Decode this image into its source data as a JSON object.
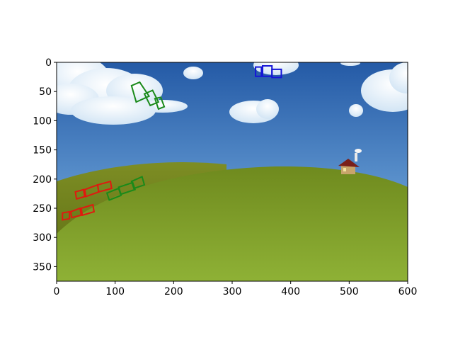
{
  "axes": {
    "x_ticks": [
      "0",
      "100",
      "200",
      "300",
      "400",
      "500",
      "600"
    ],
    "y_ticks": [
      "0",
      "50",
      "100",
      "150",
      "200",
      "250",
      "300",
      "350"
    ],
    "xlim": [
      0,
      600
    ],
    "ylim": [
      375,
      0
    ]
  },
  "scene": {
    "sky_color_top": "#2a5ea8",
    "sky_color_bottom": "#7fb6e6",
    "hill_color": "#7f9a26",
    "hill_dark": "#5f7a18"
  },
  "annotations": {
    "colors": {
      "red": "#e0190f",
      "green": "#1a8a1a",
      "blue": "#1515d8"
    },
    "boxes": [
      {
        "color": "red",
        "points": [
          [
            10,
            258
          ],
          [
            22,
            256
          ],
          [
            22,
            268
          ],
          [
            10,
            270
          ]
        ]
      },
      {
        "color": "red",
        "points": [
          [
            24,
            256
          ],
          [
            40,
            250
          ],
          [
            42,
            262
          ],
          [
            26,
            266
          ]
        ]
      },
      {
        "color": "red",
        "points": [
          [
            42,
            250
          ],
          [
            62,
            244
          ],
          [
            64,
            256
          ],
          [
            44,
            262
          ]
        ]
      },
      {
        "color": "red",
        "points": [
          [
            32,
            222
          ],
          [
            46,
            218
          ],
          [
            48,
            230
          ],
          [
            34,
            234
          ]
        ]
      },
      {
        "color": "red",
        "points": [
          [
            48,
            218
          ],
          [
            70,
            210
          ],
          [
            72,
            222
          ],
          [
            50,
            230
          ]
        ]
      },
      {
        "color": "red",
        "points": [
          [
            70,
            210
          ],
          [
            92,
            204
          ],
          [
            94,
            216
          ],
          [
            72,
            222
          ]
        ]
      },
      {
        "color": "green",
        "points": [
          [
            86,
            224
          ],
          [
            106,
            216
          ],
          [
            110,
            228
          ],
          [
            90,
            236
          ]
        ]
      },
      {
        "color": "green",
        "points": [
          [
            106,
            214
          ],
          [
            130,
            206
          ],
          [
            134,
            218
          ],
          [
            110,
            226
          ]
        ]
      },
      {
        "color": "green",
        "points": [
          [
            128,
            204
          ],
          [
            146,
            196
          ],
          [
            150,
            210
          ],
          [
            132,
            216
          ]
        ]
      },
      {
        "color": "green",
        "points": [
          [
            128,
            40
          ],
          [
            142,
            34
          ],
          [
            158,
            58
          ],
          [
            136,
            68
          ]
        ]
      },
      {
        "color": "green",
        "points": [
          [
            150,
            54
          ],
          [
            164,
            48
          ],
          [
            174,
            68
          ],
          [
            160,
            74
          ]
        ]
      },
      {
        "color": "green",
        "points": [
          [
            168,
            62
          ],
          [
            178,
            60
          ],
          [
            184,
            76
          ],
          [
            174,
            80
          ]
        ]
      },
      {
        "color": "blue",
        "points": [
          [
            340,
            8
          ],
          [
            350,
            8
          ],
          [
            350,
            24
          ],
          [
            340,
            24
          ]
        ]
      },
      {
        "color": "blue",
        "points": [
          [
            352,
            6
          ],
          [
            368,
            6
          ],
          [
            368,
            24
          ],
          [
            352,
            24
          ]
        ]
      },
      {
        "color": "blue",
        "points": [
          [
            368,
            12
          ],
          [
            384,
            12
          ],
          [
            384,
            26
          ],
          [
            368,
            26
          ]
        ]
      }
    ]
  }
}
